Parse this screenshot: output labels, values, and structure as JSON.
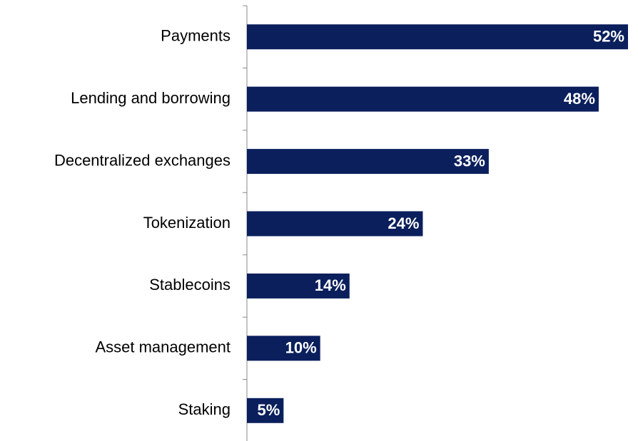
{
  "chart_data": {
    "type": "bar",
    "orientation": "horizontal",
    "categories": [
      "Payments",
      "Lending and borrowing",
      "Decentralized exchanges",
      "Tokenization",
      "Stablecoins",
      "Asset management",
      "Staking"
    ],
    "values": [
      52,
      48,
      33,
      24,
      14,
      10,
      5
    ],
    "value_labels": [
      "52%",
      "48%",
      "33%",
      "24%",
      "14%",
      "10%",
      "5%"
    ],
    "color": "#0a1f5c",
    "xlim": [
      0,
      52
    ]
  }
}
